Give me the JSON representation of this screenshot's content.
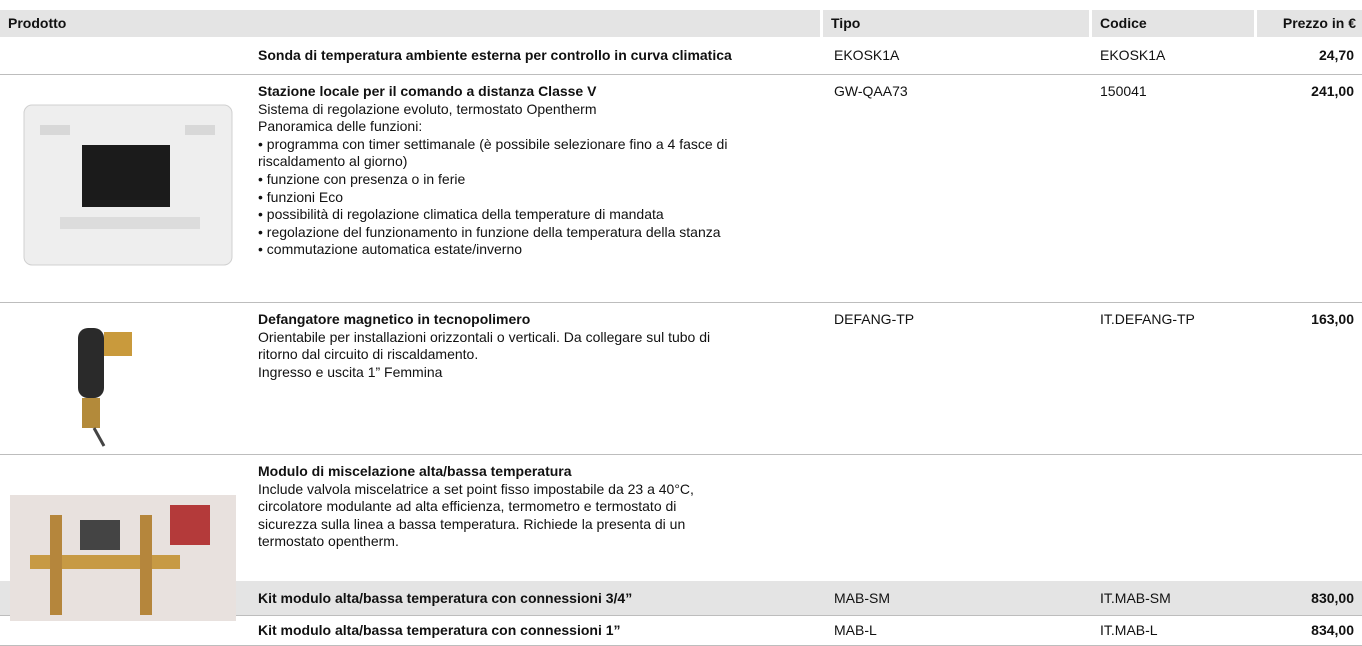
{
  "header": {
    "prodotto": "Prodotto",
    "tipo": "Tipo",
    "codice": "Codice",
    "prezzo": "Prezzo in €"
  },
  "rows": [
    {
      "title": "Sonda di temperatura ambiente esterna per controllo in curva climatica",
      "lines": [],
      "tipo": "EKOSK1A",
      "codice": "EKOSK1A",
      "prezzo": "24,70"
    },
    {
      "title": "Stazione locale per il comando a distanza Classe V",
      "lines": [
        "Sistema di regolazione evoluto, termostato Opentherm",
        "Panoramica delle funzioni:",
        "• programma con timer settimanale (è possibile selezionare fino a 4 fasce di",
        "riscaldamento al giorno)",
        "• funzione con presenza o in ferie",
        "• funzioni Eco",
        "• possibilità di regolazione climatica della temperature di mandata",
        "• regolazione del funzionamento in funzione della temperatura della stanza",
        "• commutazione automatica estate/inverno"
      ],
      "tipo": "GW-QAA73",
      "codice": "150041",
      "prezzo": "241,00"
    },
    {
      "title": "Defangatore magnetico in tecnopolimero",
      "lines": [
        "Orientabile per installazioni orizzontali o verticali. Da collegare sul tubo di",
        "ritorno dal circuito di riscaldamento.",
        "Ingresso e uscita 1” Femmina"
      ],
      "tipo": "DEFANG-TP",
      "codice": "IT.DEFANG-TP",
      "prezzo": "163,00"
    },
    {
      "title": "Modulo di miscelazione alta/bassa temperatura",
      "lines": [
        "Include valvola miscelatrice a set point fisso impostabile da 23 a 40°C,",
        "circolatore modulante ad alta efficienza, termometro e termostato di",
        "sicurezza sulla linea a bassa temperatura. Richiede la presenta di un",
        "termostato opentherm."
      ],
      "tipo": null,
      "codice": null,
      "prezzo": null
    },
    {
      "title": "Kit modulo alta/bassa temperatura con connessioni 3/4”",
      "lines": [],
      "tipo": "MAB-SM",
      "codice": "IT.MAB-SM",
      "prezzo": "830,00"
    },
    {
      "title": "Kit modulo alta/bassa temperatura con connessioni 1”",
      "lines": [],
      "tipo": "MAB-L",
      "codice": "IT.MAB-L",
      "prezzo": "834,00"
    }
  ]
}
